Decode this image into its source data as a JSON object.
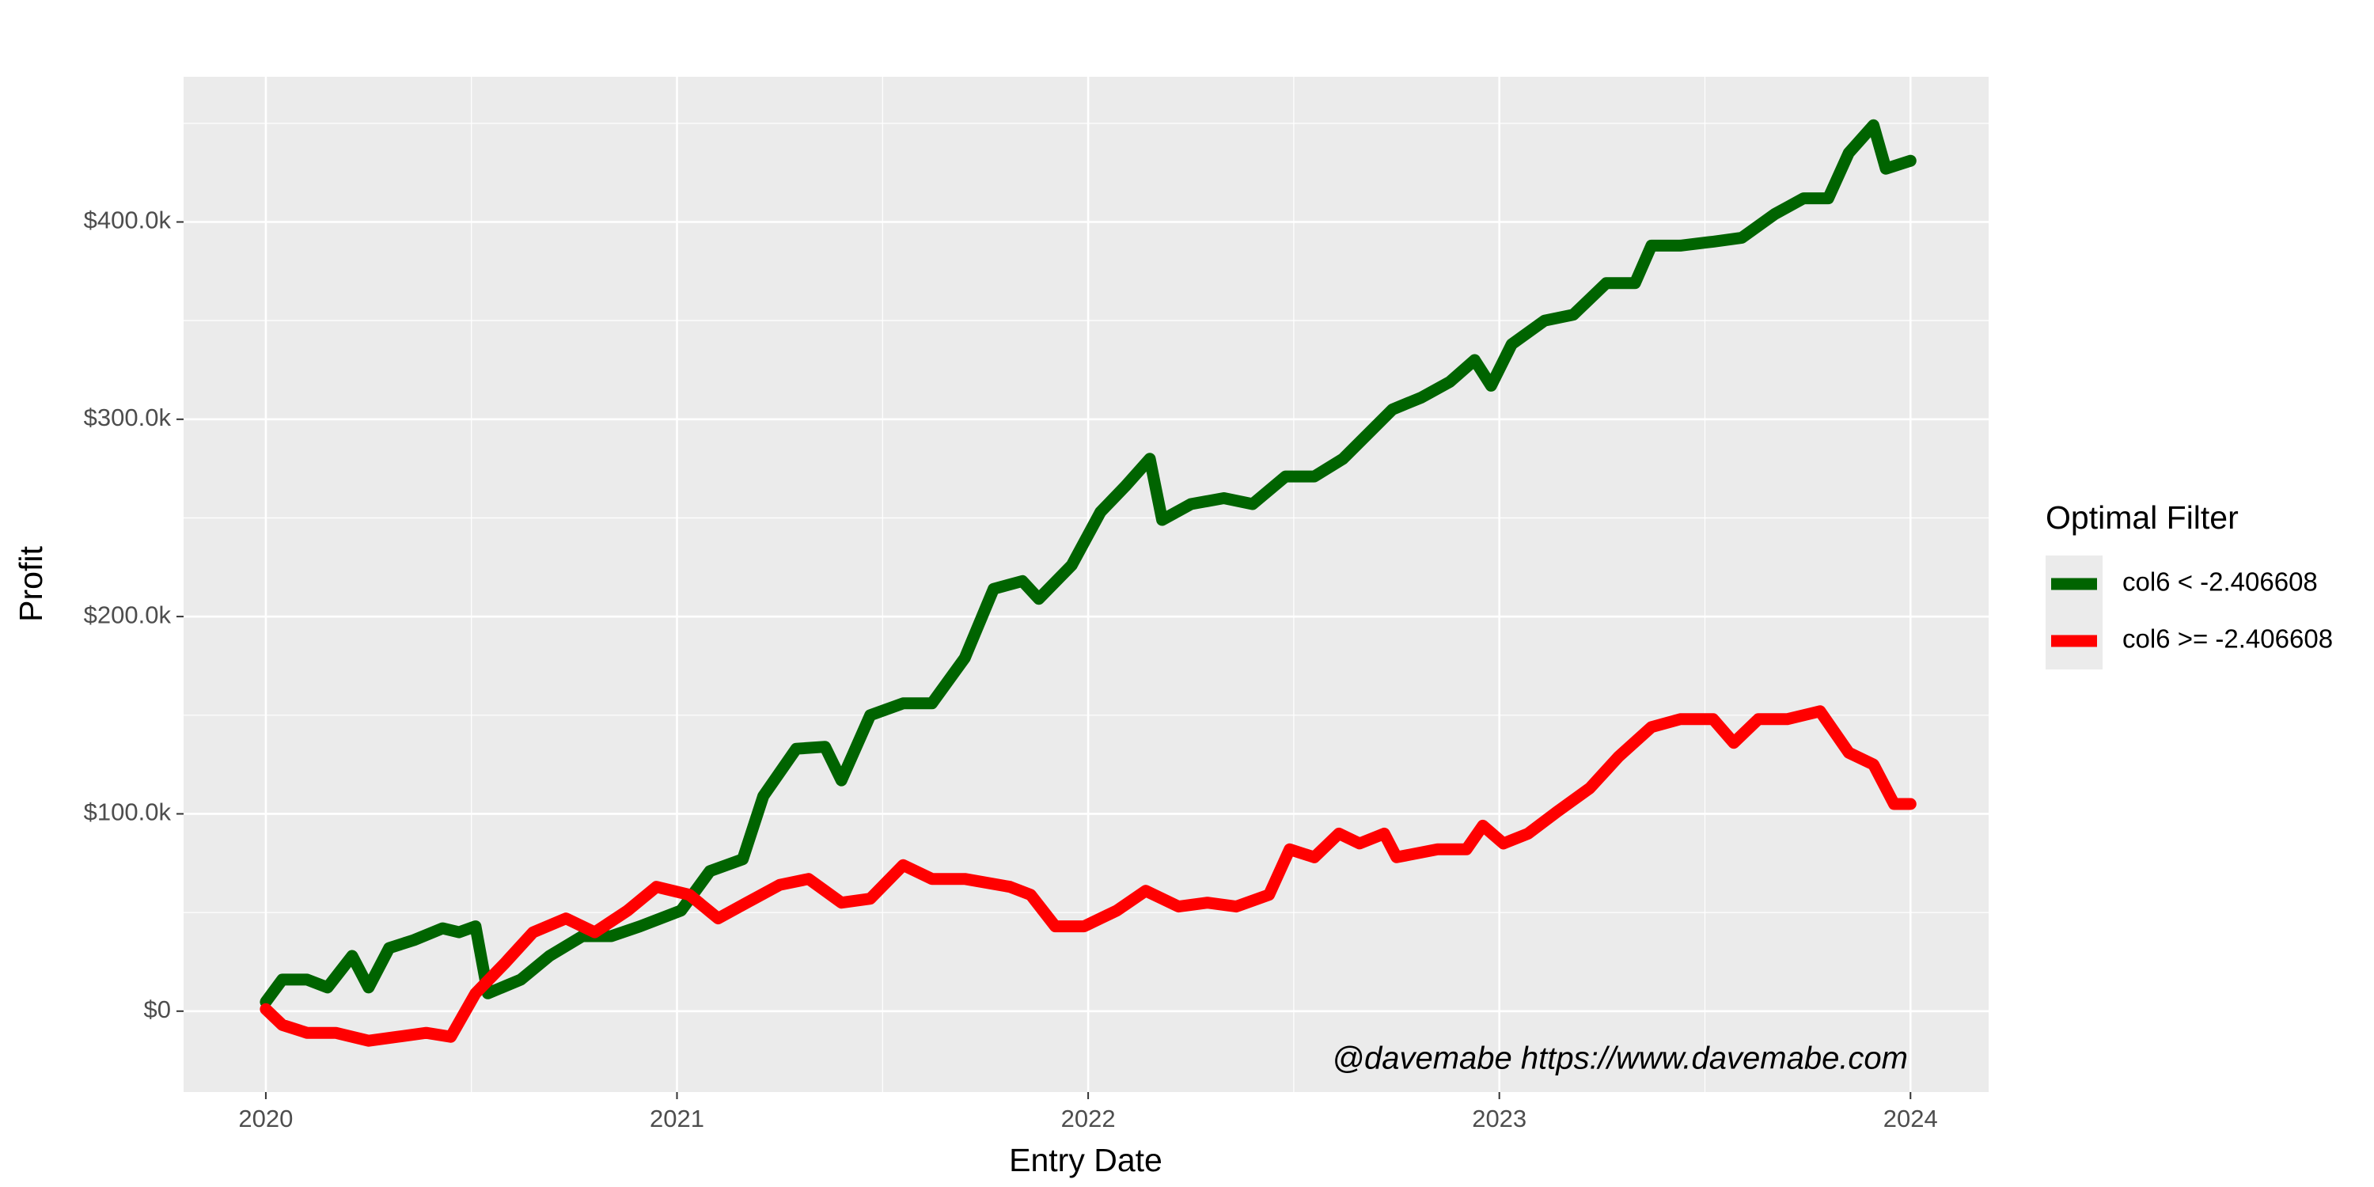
{
  "chart_data": {
    "type": "line",
    "x_label": "Entry Date",
    "y_label": "Profit",
    "legend_title": "Optimal Filter",
    "annotation": "@davemabe https://www.davemabe.com",
    "xlim": [
      2019.8,
      2024.19
    ],
    "xticks": [
      2020,
      2021,
      2022,
      2023,
      2024
    ],
    "ylim": [
      -41000,
      473600
    ],
    "yticks": [
      {
        "value": 0,
        "label": "$0"
      },
      {
        "value": 100000,
        "label": "$100.0k"
      },
      {
        "value": 200000,
        "label": "$200.0k"
      },
      {
        "value": 300000,
        "label": "$300.0k"
      },
      {
        "value": 400000,
        "label": "$400.0k"
      }
    ],
    "grid": true,
    "legend_position": "right",
    "series": [
      {
        "name": "col6 < -2.406608",
        "color": "#006400",
        "x": [
          2020.0,
          2020.04,
          2020.1,
          2020.15,
          2020.21,
          2020.25,
          2020.3,
          2020.36,
          2020.43,
          2020.47,
          2020.51,
          2020.54,
          2020.62,
          2020.69,
          2020.77,
          2020.84,
          2020.91,
          2021.01,
          2021.08,
          2021.16,
          2021.21,
          2021.29,
          2021.36,
          2021.4,
          2021.47,
          2021.55,
          2021.62,
          2021.7,
          2021.77,
          2021.84,
          2021.88,
          2021.96,
          2022.03,
          2022.09,
          2022.15,
          2022.18,
          2022.25,
          2022.33,
          2022.4,
          2022.48,
          2022.55,
          2022.62,
          2022.74,
          2022.81,
          2022.88,
          2022.94,
          2022.98,
          2023.03,
          2023.11,
          2023.18,
          2023.26,
          2023.33,
          2023.37,
          2023.44,
          2023.52,
          2023.59,
          2023.67,
          2023.74,
          2023.8,
          2023.85,
          2023.91,
          2023.94,
          2024.0
        ],
        "values": [
          4700,
          16000,
          16000,
          12000,
          28000,
          12000,
          32000,
          36000,
          42000,
          40000,
          43000,
          9000,
          16000,
          28000,
          38000,
          38000,
          43000,
          51000,
          71000,
          77000,
          109000,
          133000,
          134000,
          117000,
          150000,
          156000,
          156000,
          179000,
          214000,
          218000,
          209000,
          226000,
          253000,
          266000,
          280000,
          249000,
          257000,
          260000,
          257000,
          271000,
          271000,
          280000,
          305000,
          311000,
          319000,
          330000,
          317000,
          338000,
          350000,
          353000,
          369000,
          369000,
          388000,
          388000,
          390000,
          392000,
          404000,
          412000,
          412000,
          435000,
          449000,
          427000,
          431000
        ]
      },
      {
        "name": "col6 >= -2.406608",
        "color": "#ff0000",
        "x": [
          2020.0,
          2020.04,
          2020.1,
          2020.17,
          2020.25,
          2020.32,
          2020.39,
          2020.45,
          2020.51,
          2020.58,
          2020.65,
          2020.73,
          2020.8,
          2020.88,
          2020.95,
          2021.03,
          2021.1,
          2021.17,
          2021.25,
          2021.32,
          2021.4,
          2021.47,
          2021.55,
          2021.62,
          2021.7,
          2021.81,
          2021.86,
          2021.92,
          2021.99,
          2022.07,
          2022.14,
          2022.22,
          2022.29,
          2022.36,
          2022.44,
          2022.49,
          2022.55,
          2022.61,
          2022.66,
          2022.72,
          2022.75,
          2022.85,
          2022.92,
          2022.96,
          2023.01,
          2023.07,
          2023.14,
          2023.22,
          2023.29,
          2023.37,
          2023.44,
          2023.52,
          2023.57,
          2023.63,
          2023.7,
          2023.78,
          2023.85,
          2023.91,
          2023.96,
          2024.0
        ],
        "values": [
          1000,
          -7000,
          -11000,
          -11000,
          -15000,
          -13000,
          -11000,
          -13000,
          9000,
          24000,
          40000,
          47000,
          40000,
          51000,
          63000,
          59000,
          47000,
          55000,
          64000,
          67000,
          55000,
          57000,
          74000,
          67000,
          67000,
          63000,
          59000,
          43000,
          43000,
          51000,
          61000,
          53000,
          55000,
          53000,
          59000,
          82000,
          78000,
          90000,
          85000,
          90000,
          78000,
          82000,
          82000,
          94000,
          85000,
          90000,
          101000,
          113000,
          129000,
          144000,
          148000,
          148000,
          136000,
          148000,
          148000,
          152000,
          131000,
          125000,
          105000,
          105000
        ]
      }
    ]
  }
}
